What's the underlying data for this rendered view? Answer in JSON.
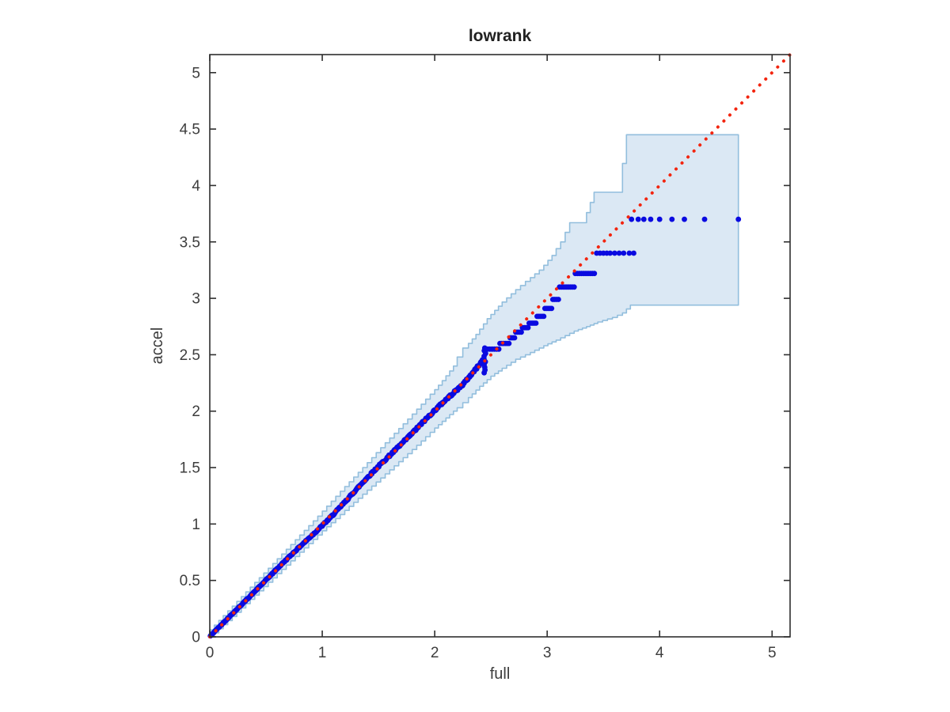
{
  "title": "lowrank",
  "colors": {
    "background": "#ffffff",
    "band_fill": "#dbe8f4",
    "band_edge": "#92bedd",
    "data_dots": "#0a0ae0",
    "reference_line": "#f3250f",
    "axis_line": "#2e2e2e",
    "text": "#3d3d3d"
  },
  "chart_data": {
    "type": "scatter",
    "subtype": "qq-plot-with-confidence-band",
    "title": "lowrank",
    "xlabel": "full",
    "ylabel": "accel",
    "xlim": [
      0,
      5.16
    ],
    "ylim": [
      0,
      5.16
    ],
    "grid": "off",
    "legend": "none",
    "x_ticks": [
      0,
      1,
      2,
      3,
      4,
      5
    ],
    "y_ticks": [
      0,
      0.5,
      1,
      1.5,
      2,
      2.5,
      3,
      3.5,
      4,
      4.5,
      5
    ],
    "x_tick_labels": [
      "0",
      "1",
      "2",
      "3",
      "4",
      "5"
    ],
    "y_tick_labels": [
      "0",
      "0.5",
      "1",
      "1.5",
      "2",
      "2.5",
      "3",
      "3.5",
      "4",
      "4.5",
      "5"
    ],
    "reference_line": {
      "style": "dotted",
      "from": [
        0,
        0
      ],
      "to": [
        5.16,
        5.16
      ]
    },
    "dense_segment": {
      "x_start": 0.005,
      "x_end": 2.43,
      "n": 430,
      "jitter": 0.02
    },
    "vertical_cluster": {
      "x": 2.445,
      "y_start": 2.34,
      "y_end": 2.56,
      "n": 10
    },
    "runs": [
      {
        "y": 2.55,
        "x_start": 2.47,
        "x_end": 2.57,
        "n": 6
      },
      {
        "y": 2.6,
        "x_start": 2.58,
        "x_end": 2.66,
        "n": 6
      },
      {
        "y": 2.65,
        "x_start": 2.67,
        "x_end": 2.71,
        "n": 4
      },
      {
        "y": 2.7,
        "x_start": 2.72,
        "x_end": 2.77,
        "n": 4
      },
      {
        "y": 2.74,
        "x_start": 2.78,
        "x_end": 2.83,
        "n": 4
      },
      {
        "y": 2.78,
        "x_start": 2.84,
        "x_end": 2.9,
        "n": 5
      },
      {
        "y": 2.84,
        "x_start": 2.91,
        "x_end": 2.97,
        "n": 5
      },
      {
        "y": 2.91,
        "x_start": 2.98,
        "x_end": 3.04,
        "n": 5
      },
      {
        "y": 2.99,
        "x_start": 3.05,
        "x_end": 3.1,
        "n": 4
      },
      {
        "y": 3.1,
        "x_start": 3.11,
        "x_end": 3.24,
        "n": 9
      },
      {
        "y": 3.22,
        "x_start": 3.25,
        "x_end": 3.42,
        "n": 10
      },
      {
        "y": 3.4,
        "xs": [
          3.44,
          3.47,
          3.5,
          3.53,
          3.56,
          3.6,
          3.64,
          3.68,
          3.73,
          3.77
        ]
      },
      {
        "y": 3.7,
        "xs": [
          3.75,
          3.81,
          3.86,
          3.92,
          4.0,
          4.11,
          4.22,
          4.4,
          4.7
        ]
      }
    ],
    "confidence_band": {
      "right_edge_x": 4.7,
      "breakpoints": [
        [
          0.0,
          0.0,
          0.02
        ],
        [
          0.2,
          0.18,
          0.23
        ],
        [
          0.4,
          0.37,
          0.44
        ],
        [
          0.6,
          0.56,
          0.65
        ],
        [
          0.8,
          0.75,
          0.86
        ],
        [
          1.0,
          0.94,
          1.07
        ],
        [
          1.2,
          1.12,
          1.29
        ],
        [
          1.4,
          1.3,
          1.5
        ],
        [
          1.6,
          1.48,
          1.72
        ],
        [
          1.8,
          1.66,
          1.93
        ],
        [
          2.0,
          1.85,
          2.15
        ],
        [
          2.1,
          1.94,
          2.27
        ],
        [
          2.2,
          2.03,
          2.4
        ],
        [
          2.3,
          2.12,
          2.56
        ],
        [
          2.4,
          2.22,
          2.68
        ],
        [
          2.5,
          2.31,
          2.82
        ],
        [
          2.6,
          2.38,
          2.93
        ],
        [
          2.72,
          2.46,
          3.04
        ],
        [
          2.85,
          2.52,
          3.15
        ],
        [
          2.97,
          2.58,
          3.25
        ],
        [
          3.08,
          2.63,
          3.38
        ],
        [
          3.16,
          2.67,
          3.5
        ],
        [
          3.24,
          2.71,
          3.67
        ],
        [
          3.35,
          2.75,
          3.67
        ],
        [
          3.45,
          2.79,
          3.94
        ],
        [
          3.58,
          2.83,
          3.94
        ],
        [
          3.67,
          2.87,
          3.94
        ],
        [
          3.74,
          2.94,
          4.45
        ],
        [
          4.7,
          2.94,
          4.45
        ]
      ]
    }
  }
}
